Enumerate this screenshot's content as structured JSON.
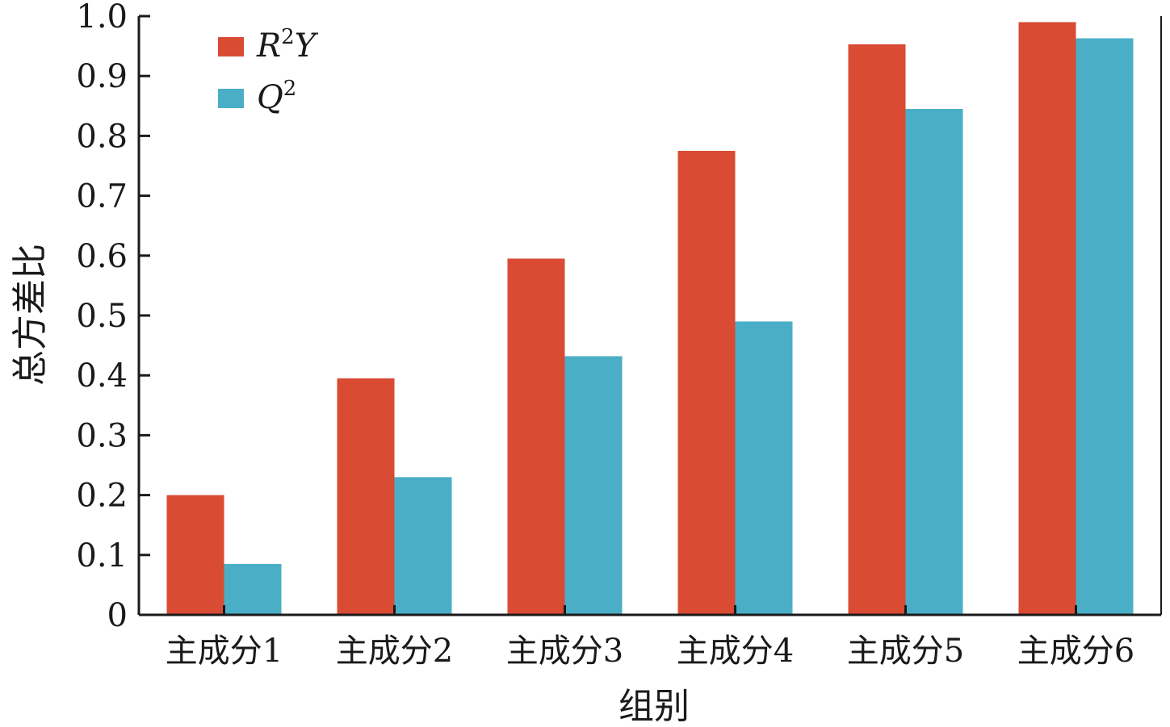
{
  "chart_data": {
    "type": "bar",
    "categories": [
      "主成分1",
      "主成分2",
      "主成分3",
      "主成分4",
      "主成分5",
      "主成分6"
    ],
    "series": [
      {
        "name": "R2Y",
        "legend_base": "R",
        "legend_sup": "2",
        "legend_tail": "Y",
        "color": "#d94b33",
        "values": [
          0.2,
          0.395,
          0.595,
          0.775,
          0.953,
          0.99
        ]
      },
      {
        "name": "Q2",
        "legend_base": "Q",
        "legend_sup": "2",
        "legend_tail": "",
        "color": "#4aafc6",
        "values": [
          0.085,
          0.23,
          0.432,
          0.49,
          0.845,
          0.963
        ]
      }
    ],
    "y_ticks": [
      "0",
      "0.1",
      "0.2",
      "0.3",
      "0.4",
      "0.5",
      "0.6",
      "0.7",
      "0.8",
      "0.9",
      "1.0"
    ],
    "ylim": [
      0,
      1.0
    ],
    "xlabel": "组别",
    "ylabel": "总方差比",
    "legend_position": "top-left",
    "grid": false
  }
}
